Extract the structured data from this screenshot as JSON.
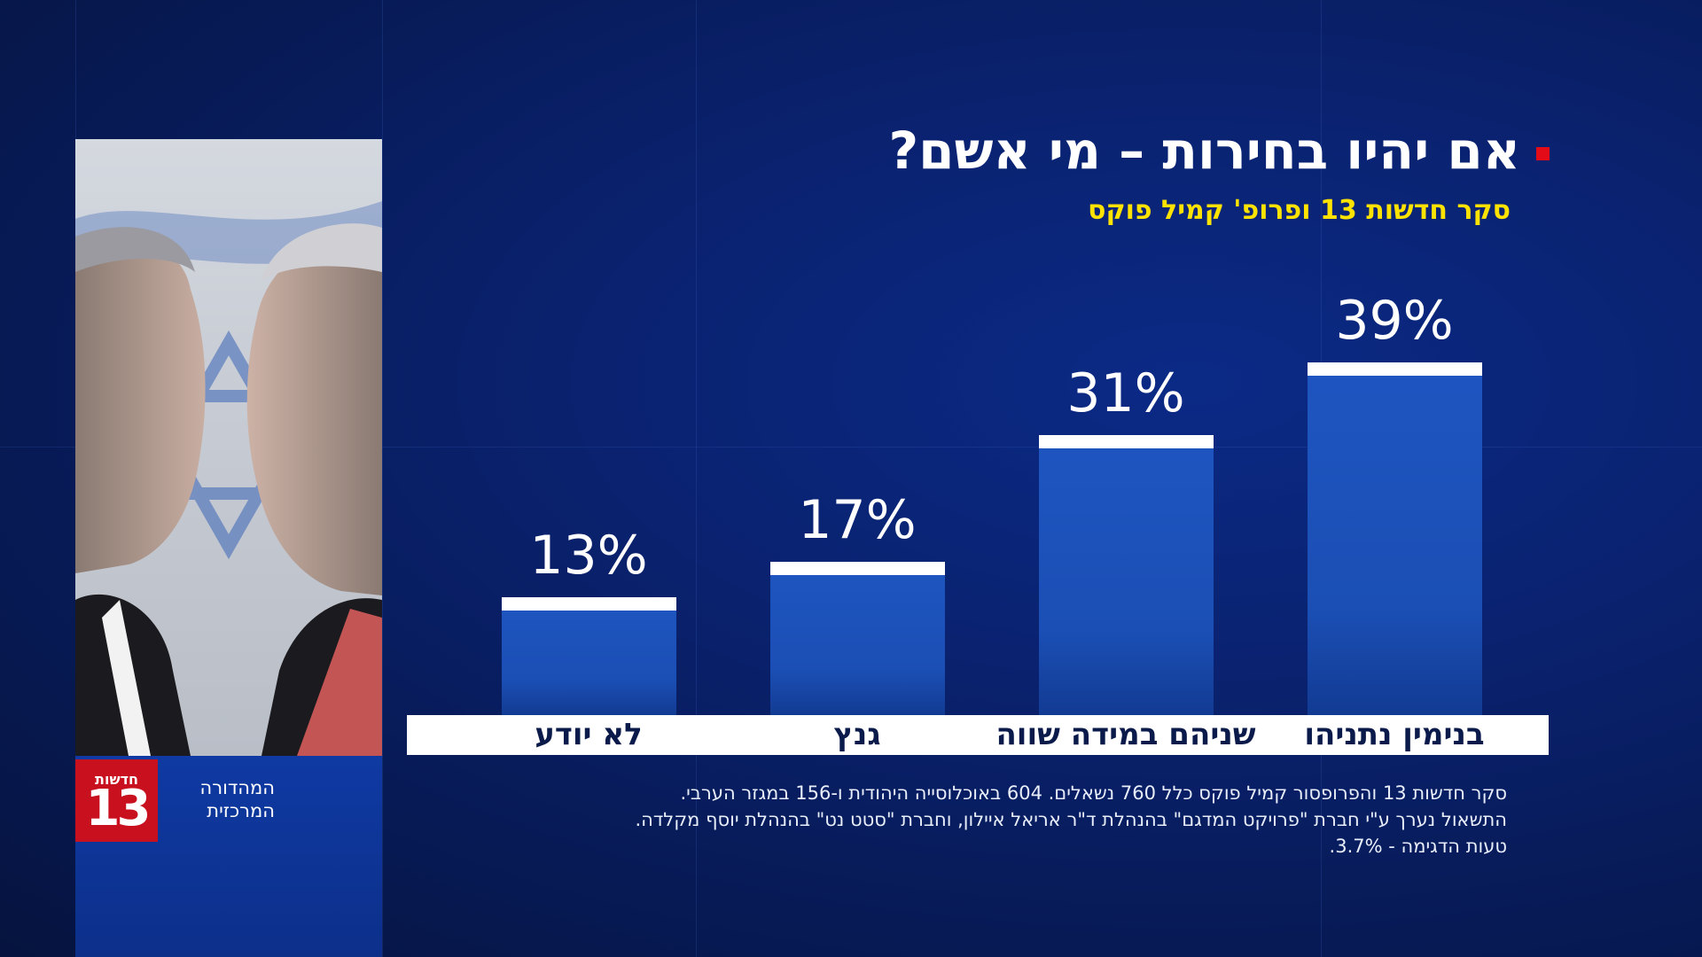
{
  "header": {
    "title": "אם יהיו בחירות – מי אשם?",
    "subtitle": "סקר חדשות 13 ופרופ' קמיל פוקס"
  },
  "branding": {
    "logo_top": "חדשות",
    "logo_number": "13",
    "edition_line1": "המהדורה",
    "edition_line2": "המרכזית"
  },
  "footnote": {
    "line1": "סקר חדשות 13 והפרופסור קמיל פוקס כלל 760 נשאלים. 604 באוכלוסייה היהודית ו-156 במגזר הערבי.",
    "line2": "התשאול נערך ע\"י חברת \"פרויקט המדגם\" בהנהלת ד\"ר אריאל איילון, וחברת \"סטט נט\" בהנהלת יוסף מקלדה.",
    "line3": "טעות הדגימה - 3.7%."
  },
  "colors": {
    "accent_red": "#e30b17",
    "subtitle_yellow": "#ffe300",
    "bar_blue": "#1e55c0",
    "background": "#0a2270"
  },
  "chart_data": {
    "type": "bar",
    "categories": [
      "בנימין נתניהו",
      "שניהם במידה שווה",
      "גנץ",
      "לא יודע"
    ],
    "values": [
      39,
      31,
      17,
      13
    ],
    "value_labels": [
      "39%",
      "31%",
      "17%",
      "13%"
    ],
    "unit": "%",
    "ylim": [
      0,
      40
    ],
    "grid": false,
    "legend": "none",
    "title": "אם יהיו בחירות – מי אשם?",
    "subtitle": "סקר חדשות 13 ופרופ' קמיל פוקס"
  }
}
